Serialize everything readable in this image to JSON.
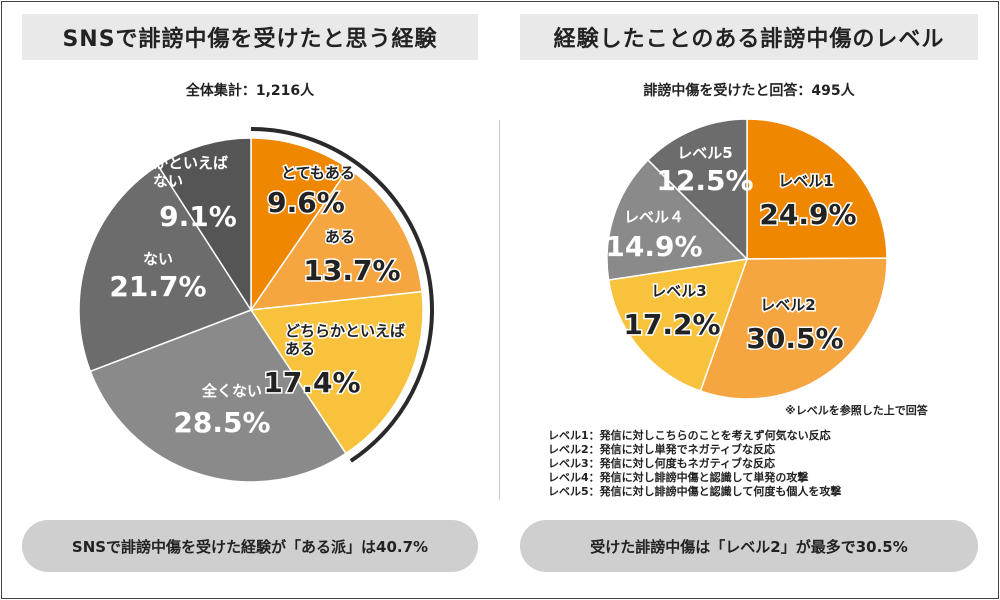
{
  "left": {
    "title": "SNSで誹謗中傷を受けたと思う経験",
    "total": "全体集計：1,216人",
    "summary": "SNSで誹謗中傷を受けた経験が「ある派」は40.7%",
    "chart_data": {
      "type": "pie",
      "title": "SNSで誹謗中傷を受けたと思う経験",
      "labels": [
        "とてもある",
        "ある",
        "どちらかといえばある",
        "全くない",
        "ない",
        "どちらかといえばない"
      ],
      "values": [
        9.6,
        13.7,
        17.4,
        28.5,
        21.7,
        9.1
      ],
      "value_labels": [
        "9.6%",
        "13.7%",
        "17.4%",
        "28.5%",
        "21.7%",
        "9.1%"
      ],
      "colors": [
        "#f08700",
        "#f6a640",
        "#f9c23c",
        "#8a8a8a",
        "#6c6c6c",
        "#555555"
      ],
      "label_colors": [
        "#222222",
        "#222222",
        "#222222",
        "#ffffff",
        "#ffffff",
        "#ffffff"
      ],
      "highlight": "ある派"
    }
  },
  "right": {
    "title": "経験したことのある誹謗中傷のレベル",
    "total": "誹謗中傷を受けたと回答：495人",
    "note": "※レベルを参照した上で回答",
    "legend": [
      "レベル1：発信に対しこちらのことを考えず何気ない反応",
      "レベル2：発信に対し単発でネガティブな反応",
      "レベル3：発信に対し何度もネガティブな反応",
      "レベル4：発信に対し誹謗中傷と認識して単発の攻撃",
      "レベル5：発信に対し誹謗中傷と認識して何度も個人を攻撃"
    ],
    "summary": "受けた誹謗中傷は「レベル2」が最多で30.5%",
    "chart_data": {
      "type": "pie",
      "title": "経験したことのある誹謗中傷のレベル",
      "labels": [
        "レベル1",
        "レベル2",
        "レベル3",
        "レベル４",
        "レベル5"
      ],
      "values": [
        24.9,
        30.5,
        17.2,
        14.9,
        12.5
      ],
      "value_labels": [
        "24.9%",
        "30.5%",
        "17.2%",
        "14.9%",
        "12.5%"
      ],
      "colors": [
        "#f08700",
        "#f6a640",
        "#f9c23c",
        "#8a8a8a",
        "#6c6c6c"
      ],
      "label_colors": [
        "#222222",
        "#222222",
        "#222222",
        "#ffffff",
        "#ffffff"
      ]
    }
  }
}
